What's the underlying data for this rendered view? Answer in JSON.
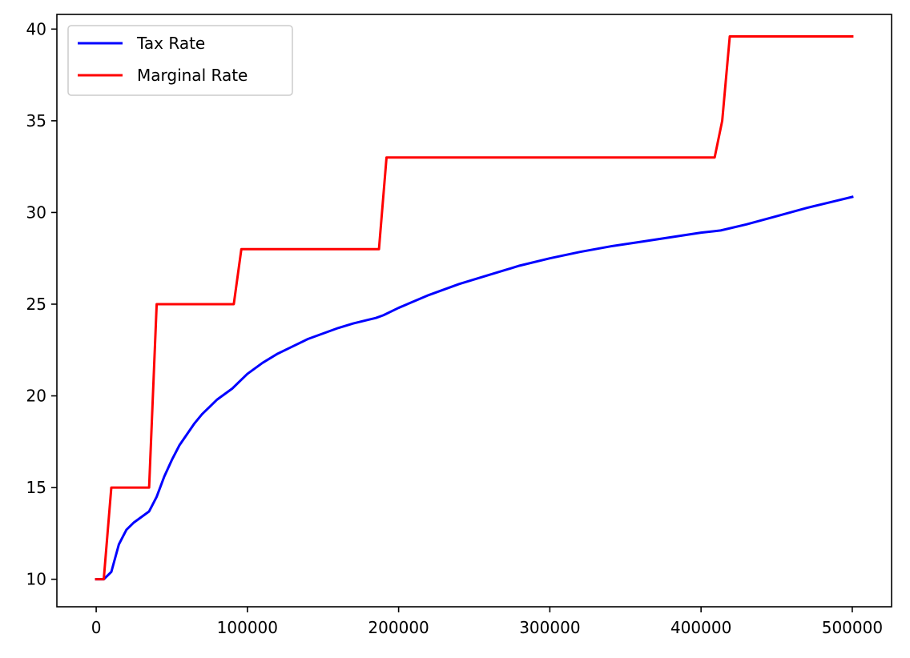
{
  "chart_data": {
    "type": "line",
    "title": "",
    "xlabel": "",
    "ylabel": "",
    "xlim": [
      -26000,
      526000
    ],
    "ylim": [
      8.5,
      40.8
    ],
    "xticks": [
      0,
      100000,
      200000,
      300000,
      400000,
      500000
    ],
    "xtick_labels": [
      "0",
      "100000",
      "200000",
      "300000",
      "400000",
      "500000"
    ],
    "yticks": [
      10,
      15,
      20,
      25,
      30,
      35,
      40
    ],
    "ytick_labels": [
      "10",
      "15",
      "20",
      "25",
      "30",
      "35",
      "40"
    ],
    "grid": false,
    "legend_position": "upper-left",
    "series": [
      {
        "name": "Tax Rate",
        "color": "#0000ff",
        "x": [
          0,
          5000,
          10000,
          15000,
          20000,
          25000,
          30000,
          35000,
          40000,
          45000,
          50000,
          55000,
          60000,
          65000,
          70000,
          75000,
          80000,
          85000,
          90000,
          95000,
          100000,
          110000,
          120000,
          130000,
          140000,
          150000,
          160000,
          170000,
          180000,
          185000,
          190000,
          200000,
          220000,
          240000,
          260000,
          280000,
          300000,
          320000,
          340000,
          360000,
          380000,
          400000,
          413000,
          430000,
          450000,
          470000,
          490000,
          500000
        ],
        "y": [
          10.0,
          10.0,
          10.4,
          11.9,
          12.7,
          13.1,
          13.4,
          13.7,
          14.5,
          15.6,
          16.5,
          17.3,
          17.9,
          18.5,
          19.0,
          19.4,
          19.8,
          20.1,
          20.4,
          20.8,
          21.2,
          21.8,
          22.3,
          22.7,
          23.1,
          23.4,
          23.7,
          23.95,
          24.15,
          24.25,
          24.4,
          24.8,
          25.5,
          26.1,
          26.6,
          27.1,
          27.5,
          27.85,
          28.15,
          28.4,
          28.65,
          28.9,
          29.02,
          29.35,
          29.8,
          30.25,
          30.65,
          30.85
        ]
      },
      {
        "name": "Marginal Rate",
        "color": "#ff0000",
        "x": [
          0,
          5000,
          10000,
          35000,
          40000,
          91000,
          96000,
          187000,
          192000,
          409000,
          414000,
          419000,
          500000
        ],
        "y": [
          10,
          10,
          15,
          15,
          25,
          25,
          28,
          28,
          33,
          33,
          35,
          39.6,
          39.6
        ]
      }
    ]
  }
}
